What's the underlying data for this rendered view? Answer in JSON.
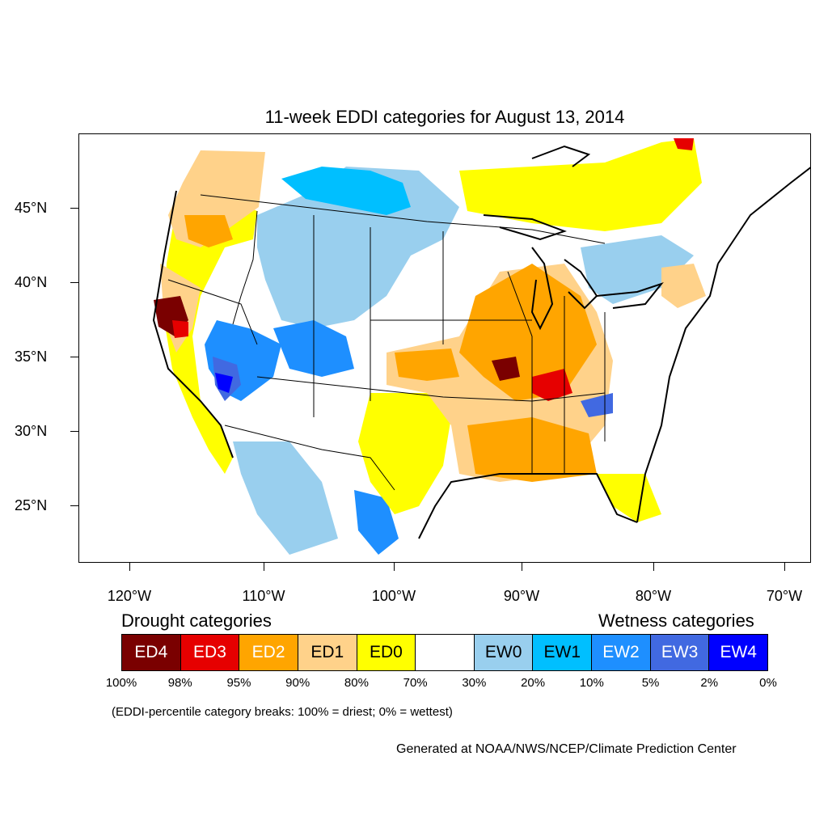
{
  "title": "11-week EDDI categories for August 13, 2014",
  "axes": {
    "lat_labels": [
      "45°N",
      "40°N",
      "35°N",
      "30°N",
      "25°N"
    ],
    "lon_labels": [
      "120°W",
      "110°W",
      "100°W",
      "90°W",
      "80°W",
      "70°W"
    ]
  },
  "legend": {
    "drought_heading": "Drought categories",
    "wetness_heading": "Wetness categories",
    "categories": [
      {
        "label": "ED4",
        "color": "#7a0000",
        "text_color": "#ffffff"
      },
      {
        "label": "ED3",
        "color": "#e60000",
        "text_color": "#ffffff"
      },
      {
        "label": "ED2",
        "color": "#ffa500",
        "text_color": "#ffffff"
      },
      {
        "label": "ED1",
        "color": "#ffd28a",
        "text_color": "#000000"
      },
      {
        "label": "ED0",
        "color": "#ffff00",
        "text_color": "#000000"
      },
      {
        "label": "",
        "color": "#ffffff",
        "text_color": "#000000"
      },
      {
        "label": "EW0",
        "color": "#99cfee",
        "text_color": "#000000"
      },
      {
        "label": "EW1",
        "color": "#00bfff",
        "text_color": "#000000"
      },
      {
        "label": "EW2",
        "color": "#1e8fff",
        "text_color": "#ffffff"
      },
      {
        "label": "EW3",
        "color": "#4169e1",
        "text_color": "#ffffff"
      },
      {
        "label": "EW4",
        "color": "#0000ff",
        "text_color": "#ffffff"
      }
    ],
    "percentiles": [
      "100%",
      "98%",
      "95%",
      "90%",
      "80%",
      "70%",
      "30%",
      "20%",
      "10%",
      "5%",
      "2%",
      "0%"
    ],
    "note": "(EDDI-percentile category breaks: 100% = driest; 0% = wettest)"
  },
  "credit": "Generated at NOAA/NWS/NCEP/Climate Prediction Center"
}
